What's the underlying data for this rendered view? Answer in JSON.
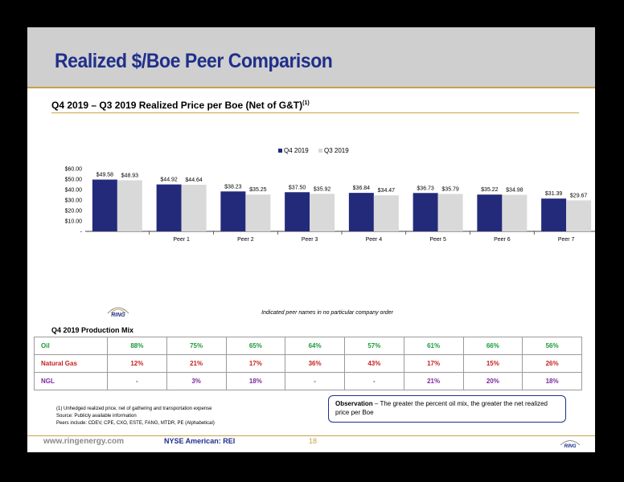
{
  "title": "Realized $/Boe Peer Comparison",
  "subtitle": "Q4 2019 – Q3 2019 Realized Price per Boe (Net of G&T)",
  "subtitle_sup": "(1)",
  "colors": {
    "q4": "#232a7a",
    "q3": "#d9d9d9",
    "title": "#1f2f8a",
    "accent": "#c8a24a",
    "oil": "#1a9a3a",
    "gas": "#c82020",
    "ngl": "#7a2a9a"
  },
  "chart_data": {
    "type": "bar",
    "categories": [
      "",
      "Peer 1",
      "Peer 2",
      "Peer 3",
      "Peer 4",
      "Peer 5",
      "Peer 6",
      "Peer 7"
    ],
    "series": [
      {
        "name": "Q4 2019",
        "values": [
          49.58,
          44.92,
          38.23,
          37.5,
          36.84,
          36.73,
          35.22,
          31.39
        ]
      },
      {
        "name": "Q3 2019",
        "values": [
          48.93,
          44.64,
          35.25,
          35.92,
          34.47,
          35.79,
          34.98,
          29.67
        ]
      }
    ],
    "data_labels": {
      "Q4 2019": [
        "$49.58",
        "$44.92",
        "$38.23",
        "$37.50",
        "$36.84",
        "$36.73",
        "$35.22",
        "$31.39"
      ],
      "Q3 2019": [
        "$48.93",
        "$44.64",
        "$35.25",
        "$35.92",
        "$34.47",
        "$35.79",
        "$34.98",
        "$29.67"
      ]
    },
    "ylim": [
      0,
      60
    ],
    "yticks": [
      0,
      10,
      20,
      30,
      40,
      50,
      60
    ],
    "ytick_labels": [
      "-",
      "$10.00",
      "$20.00",
      "$30.00",
      "$40.00",
      "$50.00",
      "$60.00"
    ],
    "legend_position": "top-center",
    "grid": false
  },
  "ring_logo_label": "RING",
  "chart_note": "Indicated peer names in no particular company order",
  "mix": {
    "title": "Q4 2019 Production Mix",
    "rows": [
      {
        "label": "Oil",
        "values": [
          "88%",
          "75%",
          "65%",
          "64%",
          "57%",
          "61%",
          "66%",
          "56%"
        ]
      },
      {
        "label": "Natural Gas",
        "values": [
          "12%",
          "21%",
          "17%",
          "36%",
          "43%",
          "17%",
          "15%",
          "26%"
        ]
      },
      {
        "label": "NGL",
        "values": [
          "-",
          "3%",
          "18%",
          "-",
          "-",
          "21%",
          "20%",
          "18%"
        ]
      }
    ]
  },
  "footnotes": [
    "(1) Unhedged realized price, net of gathering and transportation expense",
    "Source: Publicly available information",
    "Peers include: CDEV, CPE, CXO, ESTE, FANG, MTDR, PE (Alphabetical)"
  ],
  "observation": {
    "bold": "Observation",
    "text": " – The greater the percent oil mix, the greater the net realized price per Boe"
  },
  "footer": {
    "website": "www.ringenergy.com",
    "ticker": "NYSE American: REI",
    "page": "18",
    "logo": "RING"
  }
}
